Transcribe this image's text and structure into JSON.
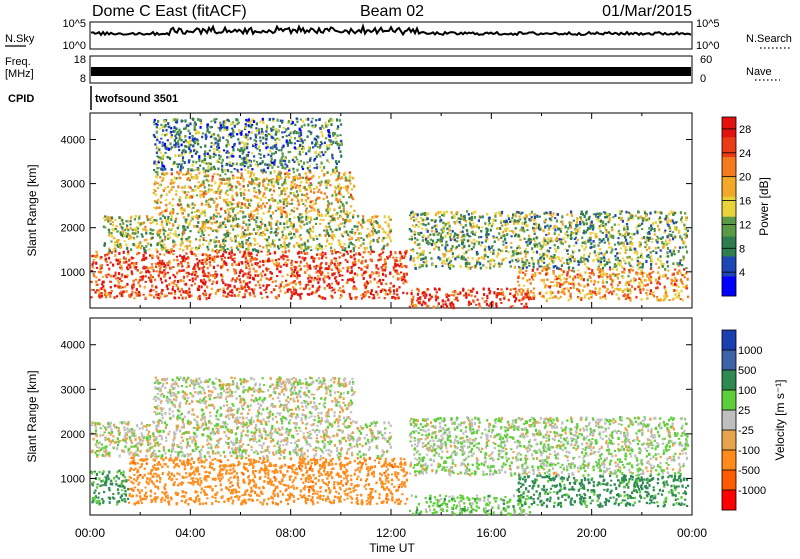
{
  "header": {
    "station": "Dome C East (fitACF)",
    "beam": "Beam 02",
    "date": "01/Mar/2015"
  },
  "strips": {
    "nsky_label": "N.Sky",
    "nsky_ticks": [
      "10^5",
      "10^0"
    ],
    "nsearch_label": "N.Search",
    "nsearch_ticks": [
      "10^5",
      "10^0"
    ],
    "freq_label": "Freq.",
    "freq_unit": "[MHz]",
    "freq_ticks": [
      "18",
      "8"
    ],
    "nave_label": "Nave",
    "nave_ticks": [
      "60",
      "0"
    ],
    "cpid_label": "CPID",
    "cpid_value": "twofsound 3501"
  },
  "colors": {
    "power_scale": [
      "#0000ff",
      "#1e46b4",
      "#2e7d4f",
      "#5a9a46",
      "#e8d33a",
      "#f2a92a",
      "#f37a1f",
      "#ea3b17",
      "#e3120f"
    ],
    "velocity_scale": [
      "#ff0000",
      "#ff5b00",
      "#ff8c1a",
      "#e8a44a",
      "#bfbfbf",
      "#5fcf39",
      "#2f8a52",
      "#3c62a8",
      "#1a3fb0"
    ]
  },
  "chart_data": [
    {
      "type": "heatmap",
      "title": "Power",
      "xlabel": "Time UT",
      "ylabel": "Slant Range [km]",
      "x_ticks": [
        "00:00",
        "04:00",
        "08:00",
        "12:00",
        "16:00",
        "20:00",
        "00:00"
      ],
      "y_ticks": [
        1000,
        2000,
        3000,
        4000
      ],
      "ylim": [
        180,
        4600
      ],
      "xlim_hours": [
        0,
        24
      ],
      "colorbar": {
        "label": "Power [dB]",
        "ticks": [
          4,
          8,
          12,
          16,
          20,
          24,
          28
        ],
        "range": [
          0,
          30
        ]
      },
      "regions": [
        {
          "t": [
            0,
            12.6
          ],
          "r": [
            420,
            1500
          ],
          "level": 25
        },
        {
          "t": [
            0.5,
            12.0
          ],
          "r": [
            1500,
            2300
          ],
          "level": 14
        },
        {
          "t": [
            2.5,
            10.5
          ],
          "r": [
            2300,
            3300
          ],
          "level": 17
        },
        {
          "t": [
            12.7,
            17.5
          ],
          "r": [
            220,
            650
          ],
          "level": 26
        },
        {
          "t": [
            12.7,
            23.8
          ],
          "r": [
            1100,
            2400
          ],
          "level": 12
        },
        {
          "t": [
            17.0,
            23.8
          ],
          "r": [
            380,
            1100
          ],
          "level": 20
        },
        {
          "t": [
            2.5,
            10.0
          ],
          "r": [
            3300,
            4500
          ],
          "level": 9
        }
      ]
    },
    {
      "type": "heatmap",
      "title": "Velocity",
      "xlabel": "Time UT",
      "ylabel": "Slant Range [km]",
      "x_ticks": [
        "00:00",
        "04:00",
        "08:00",
        "12:00",
        "16:00",
        "20:00",
        "00:00"
      ],
      "y_ticks": [
        1000,
        2000,
        3000,
        4000
      ],
      "ylim": [
        180,
        4600
      ],
      "xlim_hours": [
        0,
        24
      ],
      "colorbar": {
        "label": "Velocity [m s^-1]",
        "ticks": [
          "1000",
          "500",
          "100",
          "25",
          "-25",
          "-100",
          "-500",
          "-1000"
        ]
      },
      "regions": [
        {
          "t": [
            0,
            1.5
          ],
          "r": [
            450,
            1200
          ],
          "level": 150
        },
        {
          "t": [
            1.5,
            12.6
          ],
          "r": [
            450,
            1500
          ],
          "level": -300
        },
        {
          "t": [
            0,
            12.0
          ],
          "r": [
            1500,
            2300
          ],
          "level": 0
        },
        {
          "t": [
            2.5,
            10.5
          ],
          "r": [
            2300,
            3300
          ],
          "level": 0
        },
        {
          "t": [
            12.7,
            17.5
          ],
          "r": [
            220,
            650
          ],
          "level": 60
        },
        {
          "t": [
            12.7,
            23.8
          ],
          "r": [
            1100,
            2400
          ],
          "level": 20
        },
        {
          "t": [
            17.0,
            23.8
          ],
          "r": [
            400,
            1100
          ],
          "level": 200
        }
      ]
    }
  ]
}
